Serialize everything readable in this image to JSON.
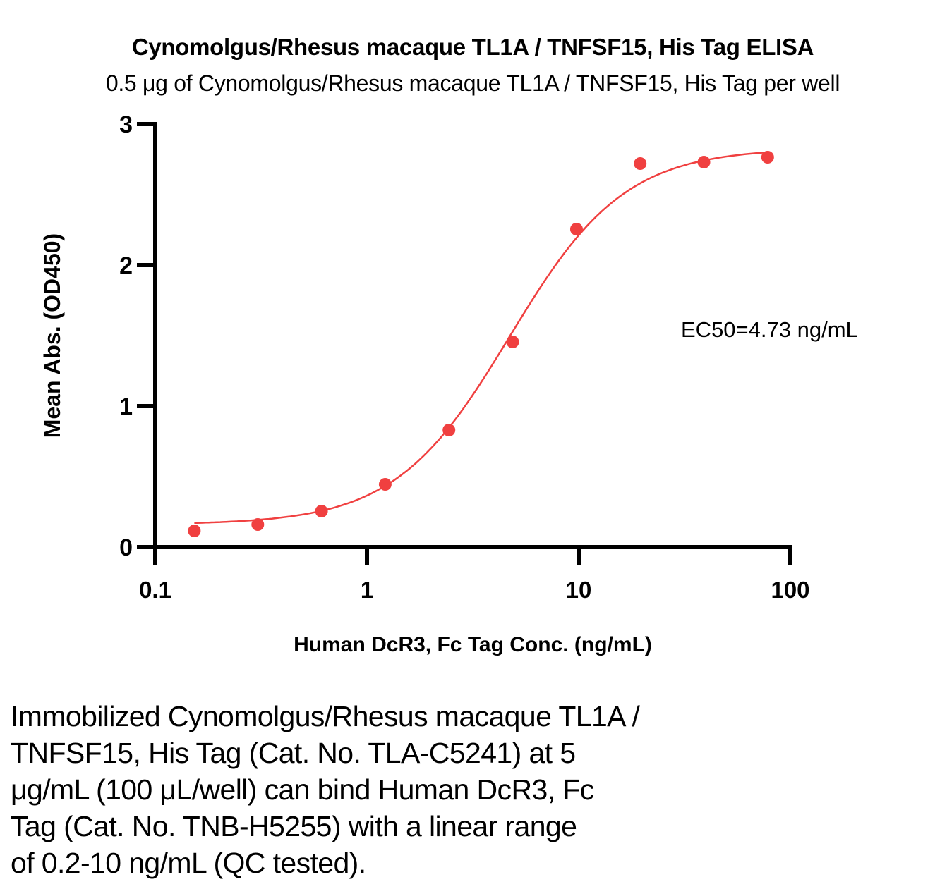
{
  "chart_data": {
    "type": "scatter",
    "title": "Cynomolgus/Rhesus macaque TL1A / TNFSF15, His Tag  ELISA",
    "subtitle": "0.5 μg of Cynomolgus/Rhesus macaque TL1A / TNFSF15, His Tag  per well",
    "xlabel": "Human DcR3, Fc Tag Conc. (ng/mL)",
    "ylabel": "Mean Abs. (OD450)",
    "xscale": "log10",
    "xlim": [
      0.1,
      100
    ],
    "ylim": [
      0,
      3
    ],
    "x_ticks": [
      0.1,
      1,
      10,
      100
    ],
    "x_tick_labels": [
      "0.1",
      "1",
      "10",
      "100"
    ],
    "y_ticks": [
      0,
      1,
      2,
      3
    ],
    "y_tick_labels": [
      "0",
      "1",
      "2",
      "3"
    ],
    "grid": false,
    "annotation": "EC50=4.73 ng/mL",
    "series": [
      {
        "name": "Human DcR3, Fc Tag",
        "color": "#f04040",
        "x": [
          0.153,
          0.305,
          0.61,
          1.22,
          2.44,
          4.88,
          9.77,
          19.53,
          39.06,
          78.13
        ],
        "y": [
          0.115,
          0.16,
          0.255,
          0.445,
          0.83,
          1.455,
          2.255,
          2.72,
          2.73,
          2.765
        ],
        "fit": {
          "model": "4PL",
          "bottom": 0.16,
          "top": 2.83,
          "ec50": 4.73,
          "hill": 1.6
        }
      }
    ]
  },
  "caption": {
    "lines": [
      "Immobilized Cynomolgus/Rhesus macaque TL1A /",
      "TNFSF15, His Tag (Cat. No. TLA-C5241) at 5",
      "μg/mL (100 μL/well) can bind Human DcR3, Fc",
      "Tag (Cat. No. TNB-H5255) with a linear range",
      "of 0.2-10 ng/mL (QC tested)."
    ]
  }
}
